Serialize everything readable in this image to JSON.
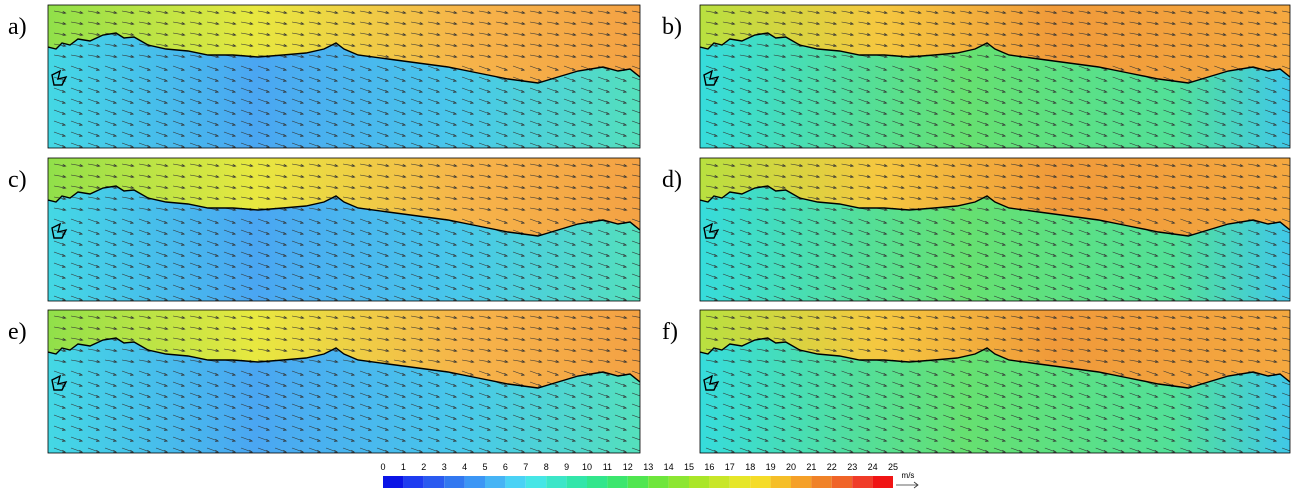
{
  "panels": [
    {
      "label": "a)"
    },
    {
      "label": "b)"
    },
    {
      "label": "c)"
    },
    {
      "label": "d)"
    },
    {
      "label": "e)"
    },
    {
      "label": "f)"
    }
  ],
  "colorbar": {
    "ticks": [
      0,
      1,
      2,
      3,
      4,
      5,
      6,
      7,
      8,
      9,
      10,
      11,
      12,
      13,
      14,
      15,
      16,
      17,
      18,
      19,
      20,
      21,
      22,
      23,
      24,
      25
    ],
    "unit": "m/s",
    "colors": [
      "#0a14e6",
      "#1e3cf0",
      "#2a5af0",
      "#3278f0",
      "#3c96f5",
      "#46b4f5",
      "#4ad2f5",
      "#46e6e6",
      "#3ce6c8",
      "#32e6aa",
      "#32e68c",
      "#3ce66e",
      "#50e650",
      "#6ee63c",
      "#8ce632",
      "#aae628",
      "#c8e628",
      "#e6e628",
      "#f5dc28",
      "#f5be28",
      "#f5a028",
      "#f08228",
      "#f06428",
      "#f03c28",
      "#f01414"
    ]
  }
}
